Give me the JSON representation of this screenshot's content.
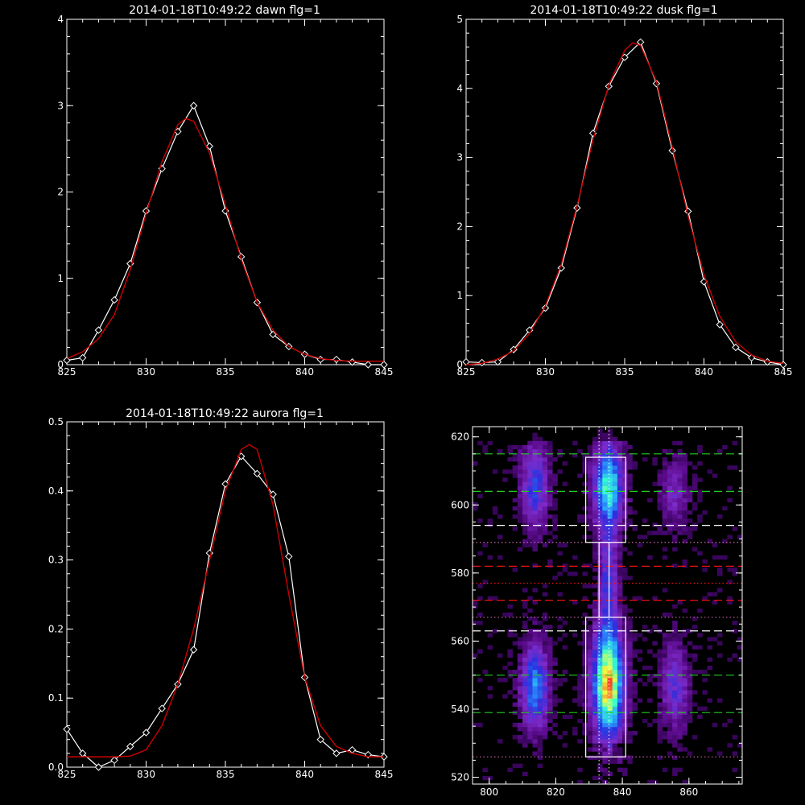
{
  "colors": {
    "background": "#000000",
    "axes": "#ffffff",
    "data_line": "#ffffff",
    "fit_line": "#cc0000"
  },
  "chart_data": [
    {
      "type": "line",
      "title": "2014-01-18T10:49:22 dawn flg=1",
      "xlim": [
        825,
        845
      ],
      "ylim": [
        0,
        4
      ],
      "xticks": [
        "825",
        "830",
        "835",
        "840",
        "845"
      ],
      "yticks": [
        "0",
        "1",
        "2",
        "3",
        "4"
      ],
      "series": [
        {
          "style": "data",
          "marker": "diamond",
          "x": [
            825,
            826,
            827,
            828,
            829,
            830,
            831,
            832,
            833,
            834,
            835,
            836,
            837,
            838,
            839,
            840,
            841,
            842,
            843,
            844,
            845
          ],
          "y": [
            0.05,
            0.08,
            0.4,
            0.75,
            1.17,
            1.78,
            2.27,
            2.7,
            3.0,
            2.53,
            1.78,
            1.25,
            0.72,
            0.35,
            0.21,
            0.12,
            0.06,
            0.06,
            0.03,
            0.0,
            0.0
          ]
        },
        {
          "style": "fit",
          "x": [
            825,
            826,
            827,
            828,
            829,
            830,
            831,
            832,
            832.5,
            833,
            834,
            835,
            836,
            837,
            838,
            839,
            840,
            841,
            842,
            843,
            844,
            845
          ],
          "y": [
            0.07,
            0.15,
            0.3,
            0.58,
            1.1,
            1.75,
            2.35,
            2.78,
            2.85,
            2.82,
            2.45,
            1.85,
            1.22,
            0.72,
            0.4,
            0.21,
            0.12,
            0.07,
            0.05,
            0.04,
            0.04,
            0.04
          ]
        }
      ]
    },
    {
      "type": "line",
      "title": "2014-01-18T10:49:22 dusk flg=1",
      "xlim": [
        825,
        845
      ],
      "ylim": [
        0,
        5
      ],
      "xticks": [
        "825",
        "830",
        "835",
        "840",
        "845"
      ],
      "yticks": [
        "0",
        "1",
        "2",
        "3",
        "4",
        "5"
      ],
      "series": [
        {
          "style": "data",
          "marker": "diamond",
          "x": [
            825,
            826,
            827,
            828,
            829,
            830,
            831,
            832,
            833,
            834,
            835,
            836,
            837,
            838,
            839,
            840,
            841,
            842,
            843,
            844,
            845
          ],
          "y": [
            0.04,
            0.03,
            0.04,
            0.22,
            0.5,
            0.82,
            1.4,
            2.27,
            3.35,
            4.03,
            4.45,
            4.67,
            4.07,
            3.1,
            2.22,
            1.2,
            0.58,
            0.25,
            0.1,
            0.04,
            0.0
          ]
        },
        {
          "style": "fit",
          "x": [
            825,
            826,
            827,
            828,
            829,
            830,
            831,
            832,
            833,
            834,
            835,
            835.5,
            836,
            837,
            838,
            839,
            840,
            841,
            842,
            843,
            844,
            845
          ],
          "y": [
            0.0,
            0.02,
            0.08,
            0.2,
            0.45,
            0.85,
            1.45,
            2.3,
            3.25,
            4.05,
            4.55,
            4.66,
            4.62,
            4.1,
            3.15,
            2.15,
            1.3,
            0.7,
            0.33,
            0.14,
            0.05,
            0.02
          ]
        }
      ]
    },
    {
      "type": "line",
      "title": "2014-01-18T10:49:22 aurora flg=1",
      "xlim": [
        825,
        845
      ],
      "ylim": [
        0,
        0.5
      ],
      "xticks": [
        "825",
        "830",
        "835",
        "840",
        "845"
      ],
      "yticks": [
        "0.0",
        "0.1",
        "0.2",
        "0.3",
        "0.4",
        "0.5"
      ],
      "series": [
        {
          "style": "data",
          "marker": "diamond",
          "x": [
            825,
            826,
            827,
            828,
            829,
            830,
            831,
            832,
            833,
            834,
            835,
            836,
            837,
            838,
            839,
            840,
            841,
            842,
            843,
            844,
            845
          ],
          "y": [
            0.055,
            0.02,
            0.0,
            0.01,
            0.03,
            0.05,
            0.085,
            0.12,
            0.17,
            0.31,
            0.41,
            0.45,
            0.425,
            0.395,
            0.305,
            0.13,
            0.04,
            0.02,
            0.025,
            0.018,
            0.015
          ]
        },
        {
          "style": "fit",
          "x": [
            825,
            826,
            827,
            828,
            829,
            830,
            831,
            832,
            833,
            834,
            835,
            836,
            836.5,
            837,
            838,
            839,
            840,
            841,
            842,
            843,
            844,
            845
          ],
          "y": [
            0.015,
            0.015,
            0.015,
            0.015,
            0.016,
            0.025,
            0.06,
            0.12,
            0.2,
            0.3,
            0.4,
            0.46,
            0.467,
            0.46,
            0.38,
            0.25,
            0.13,
            0.06,
            0.03,
            0.02,
            0.015,
            0.015
          ]
        }
      ]
    },
    {
      "type": "heatmap",
      "xlim": [
        795,
        876
      ],
      "ylim": [
        518,
        623
      ],
      "xticks": [
        800,
        820,
        840,
        860
      ],
      "yticks": [
        520,
        540,
        560,
        580,
        600,
        620
      ],
      "colormap": [
        "#1a0030",
        "#5b0b8c",
        "#7d2cc9",
        "#2a2fe0",
        "#2aa0ff",
        "#35ffd0",
        "#f0ff40",
        "#ff2020"
      ],
      "blobs": [
        {
          "x": 813,
          "y": 605,
          "sx": 3.0,
          "sy": 9,
          "amp": 0.42
        },
        {
          "x": 813,
          "y": 546,
          "sx": 3.0,
          "sy": 9,
          "amp": 0.55
        },
        {
          "x": 835,
          "y": 605,
          "sx": 3.2,
          "sy": 9,
          "amp": 0.7
        },
        {
          "x": 835,
          "y": 547,
          "sx": 3.4,
          "sy": 12,
          "amp": 0.92
        },
        {
          "x": 855,
          "y": 603,
          "sx": 3.0,
          "sy": 7,
          "amp": 0.26
        },
        {
          "x": 855,
          "y": 546,
          "sx": 3.0,
          "sy": 9,
          "amp": 0.34
        },
        {
          "x": 835,
          "y": 578,
          "sx": 2.0,
          "sy": 10,
          "amp": 0.35
        }
      ],
      "boxes": [
        {
          "x0": 829,
          "x1": 841,
          "y0": 589,
          "y1": 614
        },
        {
          "x0": 829,
          "x1": 841,
          "y0": 526,
          "y1": 567
        },
        {
          "x0": 833,
          "x1": 836,
          "y0": 567,
          "y1": 589
        }
      ],
      "vlines_dotted": [
        833,
        836
      ],
      "hlines": [
        {
          "y": 615,
          "color": "green",
          "style": "dashed"
        },
        {
          "y": 604,
          "color": "green",
          "style": "dashed"
        },
        {
          "y": 594,
          "color": "white",
          "style": "dashed"
        },
        {
          "y": 589,
          "color": "pink",
          "style": "dotted"
        },
        {
          "y": 582,
          "color": "red",
          "style": "dashed"
        },
        {
          "y": 577,
          "color": "red",
          "style": "dotted"
        },
        {
          "y": 572,
          "color": "red",
          "style": "dashed"
        },
        {
          "y": 567,
          "color": "pink",
          "style": "dotted"
        },
        {
          "y": 563,
          "color": "white",
          "style": "dashed"
        },
        {
          "y": 550,
          "color": "green",
          "style": "dashed"
        },
        {
          "y": 539,
          "color": "green",
          "style": "dashed"
        },
        {
          "y": 526,
          "color": "pink",
          "style": "dotted"
        }
      ]
    }
  ]
}
